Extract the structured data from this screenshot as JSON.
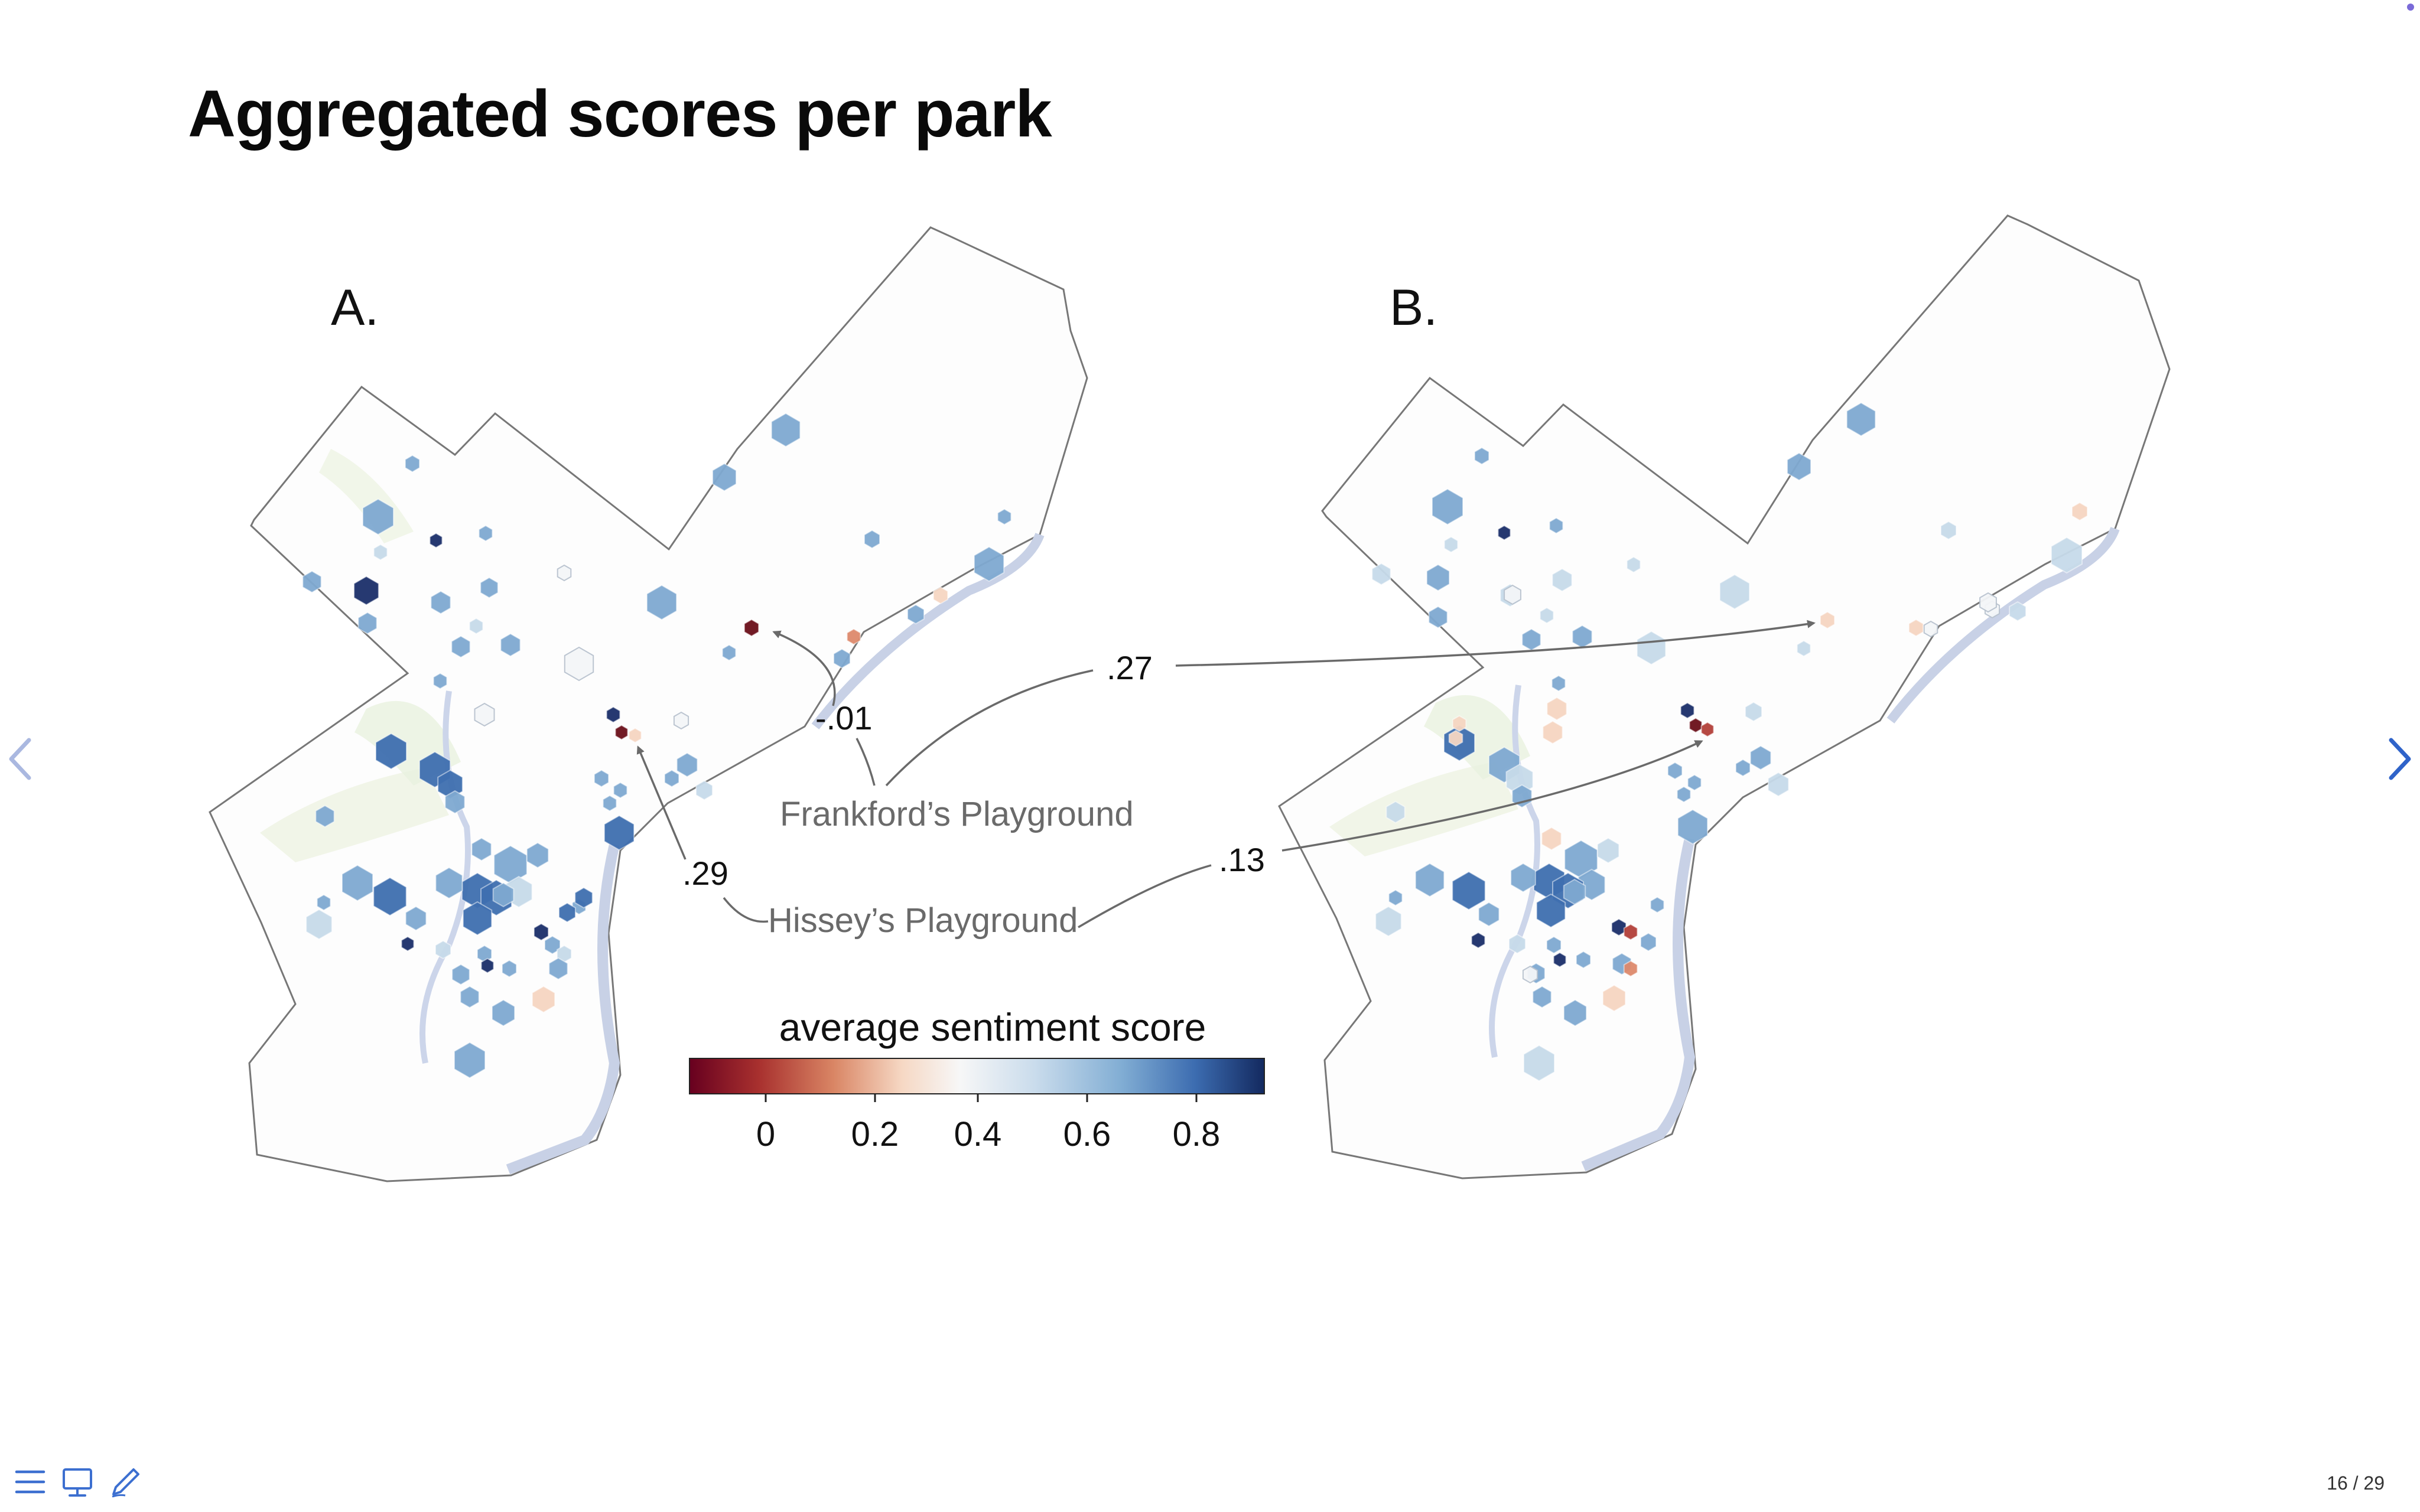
{
  "slide": {
    "title": "Aggregated scores per park",
    "counter": "16 / 29"
  },
  "panels": {
    "a_label": "A.",
    "b_label": "B."
  },
  "annotations": {
    "frankford_name": "Frankford’s Playground",
    "hissey_name": "Hissey’s Playground",
    "frankford_a_value": "-.01",
    "frankford_b_value": ".27",
    "hissey_a_value": ".29",
    "hissey_b_value": ".13"
  },
  "legend": {
    "title": "average sentiment score",
    "ticks": [
      "0",
      "0.2",
      "0.4",
      "0.6",
      "0.8"
    ],
    "colors": [
      "#6b0f1a",
      "#b3403a",
      "#de8a6c",
      "#f6d6c2",
      "#f4f6f8",
      "#c7dbea",
      "#7fa9d1",
      "#3f6fb0",
      "#1b2f6a"
    ]
  },
  "icons": {
    "prev": "chevron-left-icon",
    "next": "chevron-right-icon",
    "menu": "menu-icon",
    "presenter": "presenter-icon",
    "pen": "pen-icon"
  }
}
